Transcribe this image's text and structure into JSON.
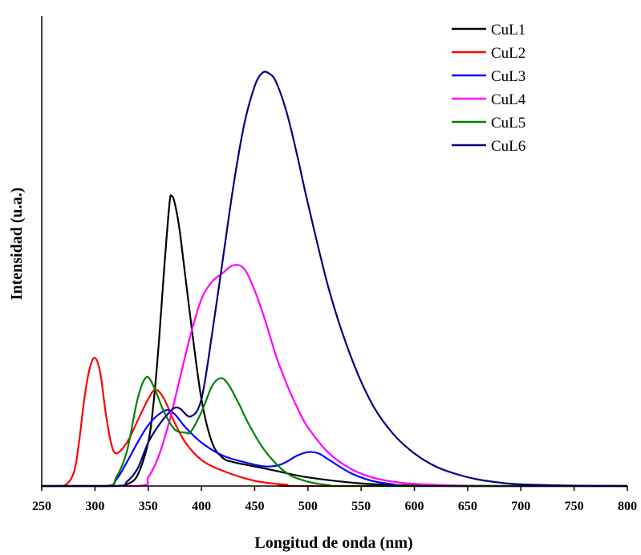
{
  "chart_data": {
    "type": "line",
    "xlabel": "Longitud de onda (nm)",
    "ylabel": "Intensidad (u.a.)",
    "xlim": [
      250,
      800
    ],
    "ylim": [
      0,
      1.0
    ],
    "x_ticks": [
      250,
      300,
      350,
      400,
      450,
      500,
      550,
      600,
      650,
      700,
      750,
      800
    ],
    "grid": false,
    "legend_position": "top-right",
    "series": [
      {
        "name": "CuL1",
        "color": "#000000",
        "points": [
          [
            250,
            0
          ],
          [
            320,
            0
          ],
          [
            330,
            0.004
          ],
          [
            340,
            0.025
          ],
          [
            350,
            0.1
          ],
          [
            355,
            0.19
          ],
          [
            360,
            0.33
          ],
          [
            365,
            0.5
          ],
          [
            370,
            0.65
          ],
          [
            372,
            0.667
          ],
          [
            375,
            0.65
          ],
          [
            380,
            0.58
          ],
          [
            390,
            0.38
          ],
          [
            400,
            0.2
          ],
          [
            410,
            0.1
          ],
          [
            420,
            0.065
          ],
          [
            430,
            0.055
          ],
          [
            450,
            0.045
          ],
          [
            470,
            0.035
          ],
          [
            500,
            0.02
          ],
          [
            550,
            0.006
          ],
          [
            600,
            0.001
          ],
          [
            650,
            0
          ],
          [
            800,
            0
          ]
        ]
      },
      {
        "name": "CuL2",
        "color": "#ff0000",
        "points": [
          [
            250,
            0
          ],
          [
            270,
            0
          ],
          [
            280,
            0.03
          ],
          [
            285,
            0.1
          ],
          [
            290,
            0.2
          ],
          [
            295,
            0.27
          ],
          [
            300,
            0.295
          ],
          [
            305,
            0.26
          ],
          [
            310,
            0.17
          ],
          [
            315,
            0.1
          ],
          [
            320,
            0.075
          ],
          [
            330,
            0.1
          ],
          [
            340,
            0.15
          ],
          [
            350,
            0.2
          ],
          [
            357,
            0.222
          ],
          [
            365,
            0.2
          ],
          [
            375,
            0.145
          ],
          [
            385,
            0.1
          ],
          [
            400,
            0.06
          ],
          [
            420,
            0.035
          ],
          [
            450,
            0.012
          ],
          [
            480,
            0.003
          ],
          [
            500,
            0
          ],
          [
            800,
            0
          ]
        ]
      },
      {
        "name": "CuL3",
        "color": "#0000ff",
        "points": [
          [
            250,
            0
          ],
          [
            310,
            0
          ],
          [
            320,
            0.015
          ],
          [
            330,
            0.055
          ],
          [
            340,
            0.1
          ],
          [
            350,
            0.14
          ],
          [
            360,
            0.165
          ],
          [
            368,
            0.175
          ],
          [
            375,
            0.165
          ],
          [
            385,
            0.135
          ],
          [
            400,
            0.1
          ],
          [
            420,
            0.07
          ],
          [
            440,
            0.055
          ],
          [
            460,
            0.045
          ],
          [
            475,
            0.05
          ],
          [
            490,
            0.07
          ],
          [
            500,
            0.078
          ],
          [
            510,
            0.075
          ],
          [
            520,
            0.06
          ],
          [
            540,
            0.03
          ],
          [
            560,
            0.012
          ],
          [
            580,
            0.004
          ],
          [
            600,
            0
          ],
          [
            800,
            0
          ]
        ]
      },
      {
        "name": "CuL4",
        "color": "#ff00ff",
        "points": [
          [
            250,
            0
          ],
          [
            340,
            0
          ],
          [
            350,
            0.02
          ],
          [
            360,
            0.07
          ],
          [
            370,
            0.15
          ],
          [
            380,
            0.25
          ],
          [
            390,
            0.35
          ],
          [
            400,
            0.43
          ],
          [
            410,
            0.47
          ],
          [
            420,
            0.49
          ],
          [
            430,
            0.508
          ],
          [
            440,
            0.5
          ],
          [
            450,
            0.45
          ],
          [
            460,
            0.38
          ],
          [
            470,
            0.3
          ],
          [
            480,
            0.235
          ],
          [
            490,
            0.18
          ],
          [
            500,
            0.135
          ],
          [
            520,
            0.075
          ],
          [
            540,
            0.04
          ],
          [
            560,
            0.02
          ],
          [
            580,
            0.01
          ],
          [
            600,
            0.005
          ],
          [
            650,
            0.001
          ],
          [
            700,
            0
          ],
          [
            800,
            0
          ]
        ]
      },
      {
        "name": "CuL5",
        "color": "#008000",
        "points": [
          [
            250,
            0
          ],
          [
            310,
            0
          ],
          [
            320,
            0.02
          ],
          [
            330,
            0.08
          ],
          [
            340,
            0.2
          ],
          [
            348,
            0.25
          ],
          [
            355,
            0.23
          ],
          [
            365,
            0.17
          ],
          [
            375,
            0.13
          ],
          [
            385,
            0.123
          ],
          [
            390,
            0.125
          ],
          [
            400,
            0.17
          ],
          [
            410,
            0.23
          ],
          [
            418,
            0.248
          ],
          [
            425,
            0.235
          ],
          [
            435,
            0.19
          ],
          [
            445,
            0.14
          ],
          [
            460,
            0.08
          ],
          [
            480,
            0.03
          ],
          [
            500,
            0.01
          ],
          [
            520,
            0.002
          ],
          [
            540,
            0
          ],
          [
            800,
            0
          ]
        ]
      },
      {
        "name": "CuL6",
        "color": "#000080",
        "points": [
          [
            250,
            0
          ],
          [
            320,
            0
          ],
          [
            330,
            0.01
          ],
          [
            340,
            0.04
          ],
          [
            350,
            0.1
          ],
          [
            360,
            0.14
          ],
          [
            370,
            0.17
          ],
          [
            375,
            0.18
          ],
          [
            380,
            0.178
          ],
          [
            390,
            0.16
          ],
          [
            400,
            0.2
          ],
          [
            410,
            0.35
          ],
          [
            420,
            0.52
          ],
          [
            430,
            0.69
          ],
          [
            440,
            0.83
          ],
          [
            450,
            0.92
          ],
          [
            457,
            0.95
          ],
          [
            463,
            0.95
          ],
          [
            470,
            0.93
          ],
          [
            480,
            0.86
          ],
          [
            490,
            0.76
          ],
          [
            500,
            0.65
          ],
          [
            520,
            0.45
          ],
          [
            540,
            0.3
          ],
          [
            560,
            0.19
          ],
          [
            580,
            0.12
          ],
          [
            600,
            0.075
          ],
          [
            620,
            0.045
          ],
          [
            640,
            0.027
          ],
          [
            660,
            0.015
          ],
          [
            680,
            0.008
          ],
          [
            700,
            0.004
          ],
          [
            750,
            0.001
          ],
          [
            800,
            0
          ]
        ]
      }
    ]
  }
}
